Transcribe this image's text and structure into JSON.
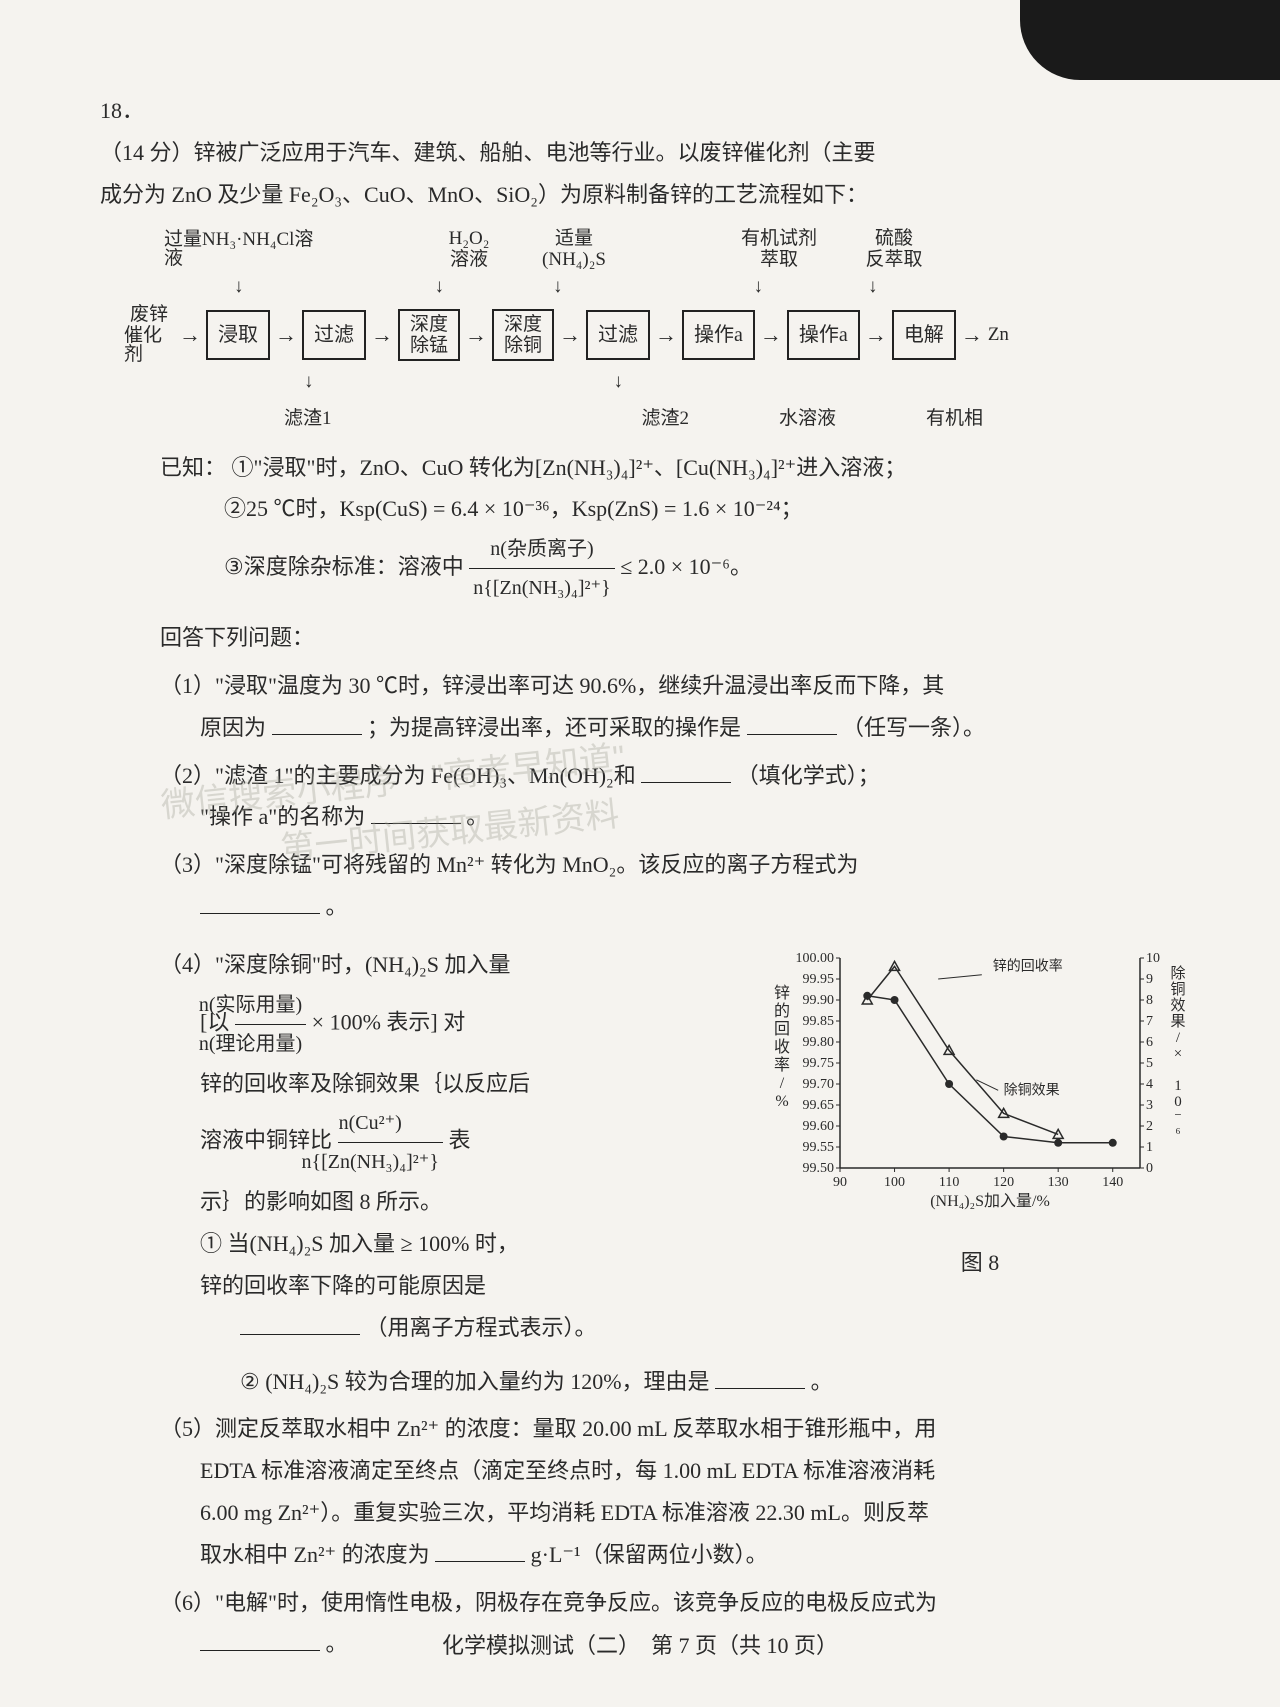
{
  "question_number": "18．",
  "points": "（14 分）",
  "intro1": "锌被广泛应用于汽车、建筑、船舶、电池等行业。以废锌催化剂（主要",
  "intro2": "成分为 ZnO 及少量 Fe₂O₃、CuO、MnO、SiO₂）为原料制备锌的工艺流程如下：",
  "flow": {
    "top_labels": [
      "过量NH₃·NH₄Cl溶液",
      "H₂O₂\n溶液",
      "适量\n(NH₄)₂S",
      "有机试剂\n萃取",
      "硫酸\n反萃取"
    ],
    "left": "废锌\n催化剂",
    "boxes": [
      "浸取",
      "过滤",
      "深度\n除锰",
      "深度\n除铜",
      "过滤",
      "操作a",
      "操作a",
      "电解"
    ],
    "out": "Zn",
    "bottom": [
      "滤渣1",
      "滤渣2",
      "水溶液",
      "有机相"
    ]
  },
  "known_label": "已知：",
  "known1": "①\"浸取\"时，ZnO、CuO 转化为[Zn(NH₃)₄]²⁺、[Cu(NH₃)₄]²⁺进入溶液；",
  "known2": "②25 ℃时，Ksp(CuS) = 6.4 × 10⁻³⁶，Ksp(ZnS) = 1.6 × 10⁻²⁴；",
  "known3a": "③深度除杂标准：溶液中",
  "known3_num": "n(杂质离子)",
  "known3_den": "n{[Zn(NH₃)₄]²⁺}",
  "known3b": "≤ 2.0 × 10⁻⁶。",
  "answer_label": "回答下列问题：",
  "p1a": "（1）\"浸取\"温度为 30 ℃时，锌浸出率可达 90.6%，继续升温浸出率反而下降，其",
  "p1b": "原因为",
  "p1c": "；为提高锌浸出率，还可采取的操作是",
  "p1d": "（任写一条）。",
  "p2a": "（2）\"滤渣 1\"的主要成分为 Fe(OH)₃、Mn(OH)₂和",
  "p2b": "（填化学式）；",
  "p2c": "\"操作 a\"的名称为",
  "p2d": "。",
  "p3a": "（3）\"深度除锰\"可将残留的 Mn²⁺ 转化为 MnO₂。该反应的离子方程式为",
  "p3b": "。",
  "p4a": "（4）\"深度除铜\"时，(NH₄)₂S 加入量",
  "p4b_num": "n(实际用量)",
  "p4b_den": "n(理论用量)",
  "p4b_pre": "[以",
  "p4b_post": "× 100% 表示] 对",
  "p4c": "锌的回收率及除铜效果｛以反应后",
  "p4d_pre": "溶液中铜锌比",
  "p4d_num": "n(Cu²⁺)",
  "p4d_den": "n{[Zn(NH₃)₄]²⁺}",
  "p4d_post": "表",
  "p4e": "示｝的影响如图 8 所示。",
  "p4_1a": "① 当(NH₄)₂S 加入量 ≥ 100% 时，",
  "p4_1b": "锌的回收率下降的可能原因是",
  "p4_1c": "（用离子方程式表示）。",
  "p4_2a": "② (NH₄)₂S 较为合理的加入量约为 120%，理由是",
  "p4_2b": "。",
  "p5a": "（5）测定反萃取水相中 Zn²⁺ 的浓度：量取 20.00 mL 反萃取水相于锥形瓶中，用",
  "p5b": "EDTA 标准溶液滴定至终点（滴定至终点时，每 1.00 mL EDTA 标准溶液消耗",
  "p5c": "6.00 mg Zn²⁺）。重复实验三次，平均消耗 EDTA 标准溶液 22.30 mL。则反萃",
  "p5d": "取水相中 Zn²⁺ 的浓度为",
  "p5e": "g·L⁻¹（保留两位小数）。",
  "p6a": "（6）\"电解\"时，使用惰性电极，阴极存在竞争反应。该竞争反应的电极反应式为",
  "p6b": "。",
  "chart": {
    "title_fig": "图 8",
    "xlabel": "(NH₄)₂S加入量/%",
    "ylabel_left": "锌的回收率/%",
    "ylabel_right": "除铜效果/× 10⁻⁶",
    "legend_zinc": "锌的回收率",
    "legend_cu": "除铜效果",
    "xlim": [
      90,
      145
    ],
    "ylim_left": [
      99.5,
      100.0
    ],
    "ytick_left": [
      "99.50",
      "99.55",
      "99.60",
      "99.65",
      "99.70",
      "99.75",
      "99.80",
      "99.85",
      "99.90",
      "99.95",
      "100.00"
    ],
    "ylim_right": [
      0,
      10
    ],
    "ytick_right": [
      "0",
      "1",
      "2",
      "3",
      "4",
      "5",
      "6",
      "7",
      "8",
      "9",
      "10"
    ],
    "xtick": [
      "90",
      "100",
      "110",
      "120",
      "130",
      "140"
    ],
    "series_zinc": {
      "x": [
        95,
        100,
        110,
        120,
        130
      ],
      "y": [
        99.9,
        99.98,
        99.78,
        99.63,
        99.58
      ],
      "marker": "triangle",
      "color": "#2a2a2a"
    },
    "series_cu": {
      "x": [
        95,
        100,
        110,
        120,
        130,
        140
      ],
      "y": [
        8.2,
        8.0,
        4.0,
        1.5,
        1.2,
        1.2
      ],
      "marker": "circle",
      "color": "#2a2a2a"
    },
    "line_width": 1.5,
    "background": "#f5f3ef",
    "axis_color": "#2a2a2a",
    "font_size": 14
  },
  "footer": "化学模拟测试（二）　第 7 页（共 10 页）",
  "wm1": "微信搜索小程序　\"高考早知道\"",
  "wm2": "第一时间获取最新资料"
}
